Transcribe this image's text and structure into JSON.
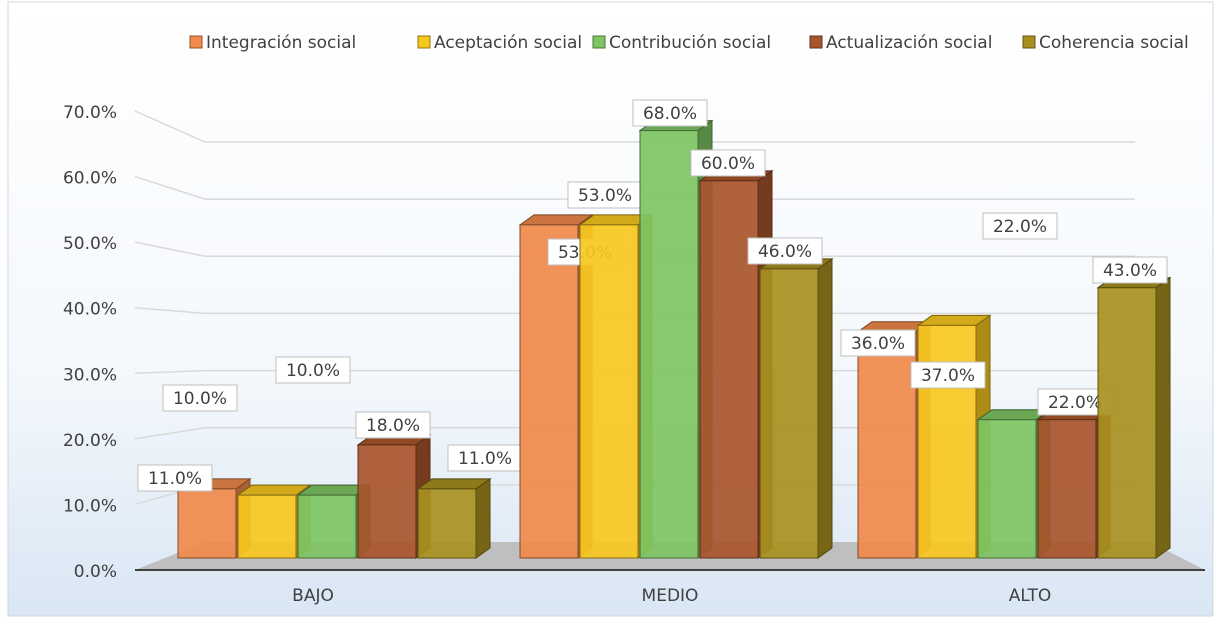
{
  "chart_data": {
    "type": "bar",
    "categories": [
      "BAJO",
      "MEDIO",
      "ALTO"
    ],
    "series": [
      {
        "name": "Integración social",
        "color": "#f0894a",
        "values": [
          11,
          53,
          36
        ],
        "value_labels": [
          "11.0%",
          "53.0%",
          "36.0%"
        ]
      },
      {
        "name": "Aceptación social",
        "color": "#f7c81e",
        "values": [
          10,
          53,
          37
        ],
        "value_labels": [
          "10.0%",
          "53.0%",
          "37.0%"
        ]
      },
      {
        "name": "Contribución social",
        "color": "#7ec463",
        "values": [
          10,
          68,
          22
        ],
        "value_labels": [
          "10.0%",
          "68.0%",
          "22.0%"
        ]
      },
      {
        "name": "Actualización social",
        "color": "#a9552c",
        "values": [
          18,
          60,
          22
        ],
        "value_labels": [
          "18.0%",
          "60.0%",
          "22.0%"
        ]
      },
      {
        "name": "Coherencia social",
        "color": "#a8901f",
        "values": [
          11,
          46,
          43
        ],
        "value_labels": [
          "11.0%",
          "46.0%",
          "43.0%"
        ]
      }
    ],
    "ylim": [
      0,
      70
    ],
    "yticks": [
      {
        "value": 0,
        "label": "0.0%"
      },
      {
        "value": 10,
        "label": "10.0%"
      },
      {
        "value": 20,
        "label": "20.0%"
      },
      {
        "value": 30,
        "label": "30.0%"
      },
      {
        "value": 40,
        "label": "40.0%"
      },
      {
        "value": 50,
        "label": "50.0%"
      },
      {
        "value": 60,
        "label": "60.0%"
      },
      {
        "value": 70,
        "label": "70.0%"
      }
    ],
    "grid": true,
    "legend": "top"
  }
}
